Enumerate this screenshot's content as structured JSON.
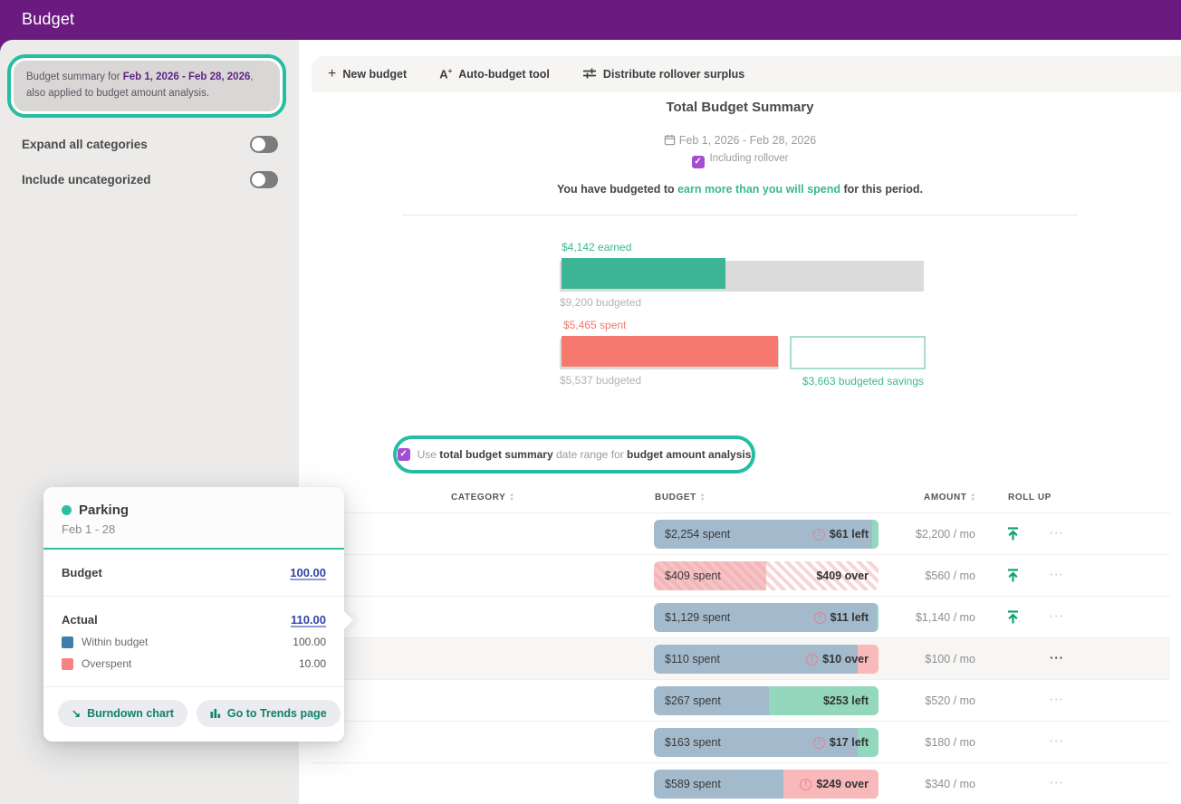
{
  "topbar": {
    "title": "Budget"
  },
  "sidebar": {
    "summary_note": {
      "prefix": "Budget summary for ",
      "date_range": "Feb 1, 2026 - Feb 28, 2026",
      "suffix": ", also applied to budget amount analysis."
    },
    "toggles": [
      {
        "label": "Expand all categories",
        "on": false
      },
      {
        "label": "Include uncategorized",
        "on": false
      }
    ]
  },
  "toolbar": {
    "buttons": [
      {
        "label": "New budget",
        "icon": "plus-icon"
      },
      {
        "label": "Auto-budget tool",
        "icon": "auto-budget-icon"
      },
      {
        "label": "Distribute rollover surplus",
        "icon": "sliders-icon"
      }
    ]
  },
  "summary": {
    "title": "Total Budget Summary",
    "date_range": "Feb 1, 2026 - Feb 28, 2026",
    "including_rollover": {
      "label": "Including rollover",
      "checked": true
    },
    "message": {
      "prefix": "You have budgeted to ",
      "highlight": "earn more than you will spend",
      "suffix": " for this period."
    }
  },
  "chart_data": {
    "type": "bar",
    "title": "Total Budget Summary",
    "axis_total": 9200,
    "bars": [
      {
        "name": "earned",
        "label": "$4,142 earned",
        "value": 4142,
        "budget": 9200,
        "budget_label": "$9,200 budgeted",
        "color": "#3CB495"
      },
      {
        "name": "spent",
        "label": "$5,465 spent",
        "value": 5465,
        "budget": 5537,
        "budget_label": "$5,537 budgeted",
        "color": "#F5796E"
      },
      {
        "name": "budgeted_savings",
        "label": "$3,663 budgeted savings",
        "value": 3663,
        "color": "#A6DECA"
      }
    ]
  },
  "analysis_note": {
    "checked": true,
    "prefix": "Use ",
    "bold1": "total budget summary",
    "middle": " date range for ",
    "bold2": "budget amount analysis"
  },
  "table": {
    "headers": [
      {
        "label": "CATEGORY",
        "sortable": true
      },
      {
        "label": "BUDGET",
        "sortable": true
      },
      {
        "label": "AMOUNT",
        "sortable": true
      },
      {
        "label": "ROLL UP",
        "sortable": false
      }
    ],
    "rows": [
      {
        "spent_label": "$2,254 spent",
        "status_label": "$61 left",
        "status_icon": true,
        "bar": {
          "filled": 2254,
          "total": 2315
        },
        "end_color": "green",
        "striped": false,
        "amount": "$2,200 / mo",
        "rollup": true,
        "menu": "dim",
        "hover": false
      },
      {
        "spent_label": "$409 spent",
        "status_label": "$409 over",
        "status_icon": false,
        "bar": {
          "filled": 409,
          "total": 818
        },
        "end_color": "striped",
        "striped": true,
        "amount": "$560 / mo",
        "rollup": true,
        "menu": "dim",
        "hover": false
      },
      {
        "spent_label": "$1,129 spent",
        "status_label": "$11 left",
        "status_icon": true,
        "bar": {
          "filled": 1129,
          "total": 1140
        },
        "end_color": "green",
        "striped": false,
        "amount": "$1,140 / mo",
        "rollup": true,
        "menu": "dim",
        "hover": false
      },
      {
        "spent_label": "$110 spent",
        "status_label": "$10 over",
        "status_icon": true,
        "bar": {
          "filled": 100,
          "total": 110
        },
        "end_color": "pink",
        "striped": false,
        "amount": "$100 / mo",
        "rollup": false,
        "menu": "dark",
        "hover": true
      },
      {
        "spent_label": "$267 spent",
        "status_label": "$253 left",
        "status_icon": false,
        "bar": {
          "filled": 267,
          "total": 520
        },
        "end_color": "green",
        "striped": false,
        "amount": "$520 / mo",
        "rollup": false,
        "menu": "dim",
        "hover": false
      },
      {
        "spent_label": "$163 spent",
        "status_label": "$17 left",
        "status_icon": true,
        "bar": {
          "filled": 163,
          "total": 180
        },
        "end_color": "green",
        "striped": false,
        "amount": "$180 / mo",
        "rollup": false,
        "menu": "dim",
        "hover": false
      },
      {
        "spent_label": "$589 spent",
        "status_label": "$249 over",
        "status_icon": true,
        "bar": {
          "filled": 340,
          "total": 589
        },
        "end_color": "pink",
        "striped": false,
        "amount": "$340 / mo",
        "rollup": false,
        "menu": "dim",
        "hover": false
      }
    ]
  },
  "popover": {
    "category": "Parking",
    "date_range": "Feb 1 - 28",
    "budget_label": "Budget",
    "budget_value": "100.00",
    "actual_label": "Actual",
    "actual_value": "110.00",
    "legend": [
      {
        "label": "Within budget",
        "value": "100.00",
        "color": "#3D7FA6"
      },
      {
        "label": "Overspent",
        "value": "10.00",
        "color": "#F5837F"
      }
    ],
    "buttons": [
      {
        "label": "Burndown chart",
        "icon": "burndown-icon"
      },
      {
        "label": "Go to Trends page",
        "icon": "trends-icon"
      }
    ]
  },
  "colors": {
    "topbar_purple": "#6B1B80",
    "checkbox_purple": "#A44ED2",
    "annotation_teal": "#26BDA2",
    "earned_teal": "#3CB495",
    "spent_salmon": "#F5796E",
    "bar_blue": "#A3BACD",
    "bar_green": "#93D8BC",
    "bar_pink": "#F9B9BA",
    "rollup_green": "#12A077",
    "link_blue": "#3144A6"
  }
}
